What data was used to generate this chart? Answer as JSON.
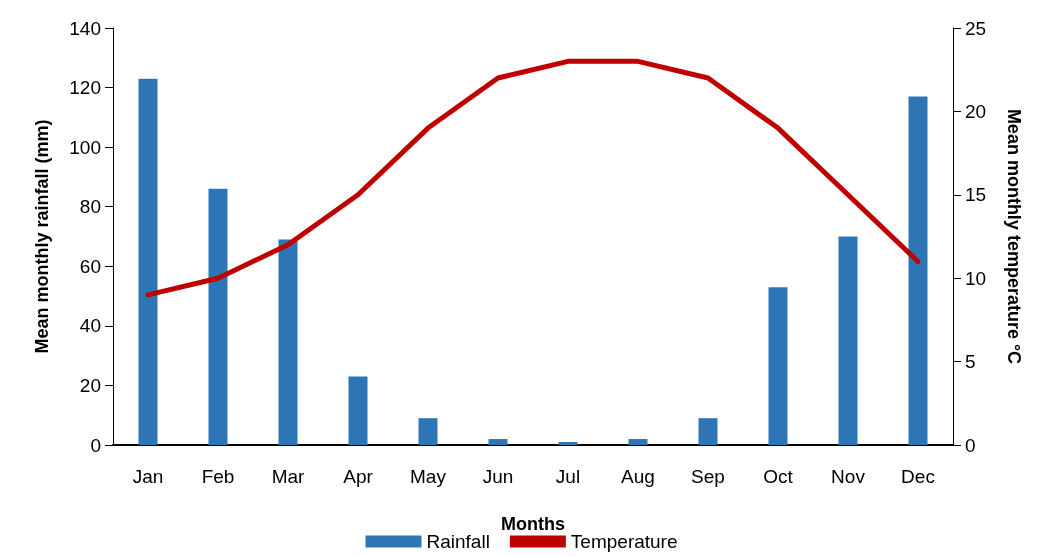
{
  "chart_data": {
    "type": "bar",
    "categories": [
      "Jan",
      "Feb",
      "Mar",
      "Apr",
      "May",
      "Jun",
      "Jul",
      "Aug",
      "Sep",
      "Oct",
      "Nov",
      "Dec"
    ],
    "xlabel": "Months",
    "ylabel": "Mean monthly rainfall (mm)",
    "y2label": "Mean monthly temperature °C",
    "series": [
      {
        "name": "Rainfall",
        "color": "#2e75b6",
        "values": [
          123,
          86,
          69,
          23,
          9,
          2,
          1,
          2,
          9,
          53,
          70,
          117
        ]
      },
      {
        "name": "Temperature",
        "type": "line",
        "axis": "y2",
        "color": "#c00000",
        "marker": "none",
        "line_style": "solid",
        "values": [
          9,
          10,
          12,
          15,
          19,
          22,
          23,
          23,
          22,
          19,
          15,
          11
        ]
      }
    ],
    "ylim": [
      0,
      140
    ],
    "yticks": [
      0,
      20,
      40,
      60,
      80,
      100,
      120,
      140
    ],
    "y2lim": [
      0,
      25
    ],
    "y2ticks": [
      0,
      5,
      10,
      15,
      20,
      25
    ],
    "grid": false,
    "legend": "bottom"
  }
}
